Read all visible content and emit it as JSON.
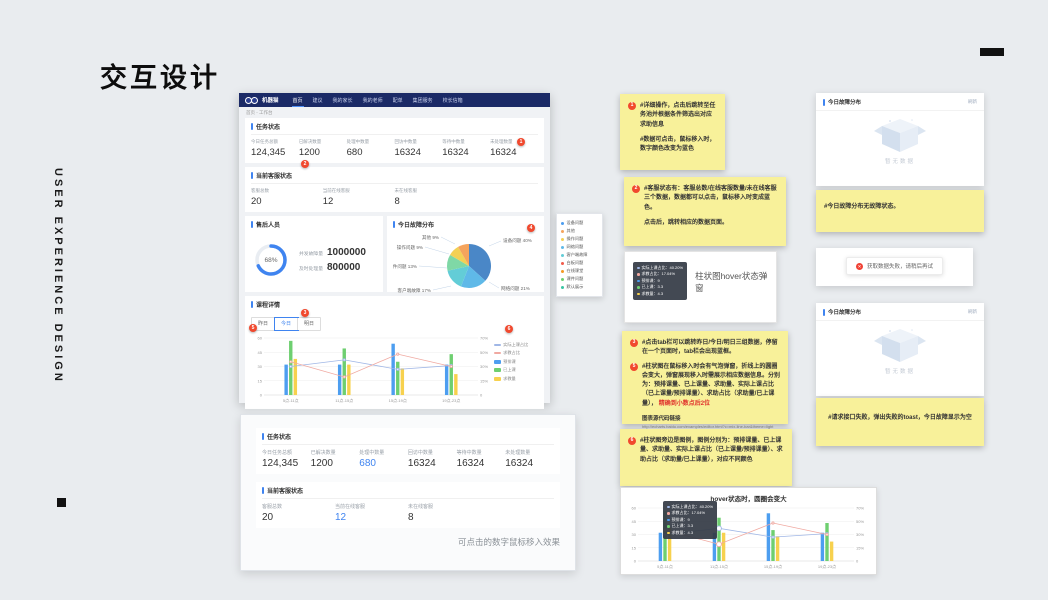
{
  "page": {
    "title": "交互设计",
    "vertical_text": "USER EXPERIENCE DESIGN",
    "caption_clickable": "可点击的数字鼠标移入效果"
  },
  "colors": {
    "accent": "#3f84f0",
    "navbar": "#1b2a66",
    "sticky_yellow": "#f8f19a",
    "badge_red": "#f1492e",
    "bar_blue": "#4d9ef0",
    "bar_green": "#6ecf70",
    "bar_yellow": "#f7d14e",
    "line_blue": "#a0b7e6",
    "line_red": "#f0a9a1"
  },
  "dashboard": {
    "navbar": {
      "logo": "机器猫",
      "items": [
        "首页",
        "建议",
        "我的家长",
        "我的老师",
        "配单",
        "集团服务",
        "校长信箱"
      ],
      "active_index": 0
    },
    "breadcrumb": "首页 - 工作台",
    "task_status": {
      "title": "任务状态",
      "stats": [
        {
          "label": "今日任务总额",
          "value": "124,345"
        },
        {
          "label": "已解决数量",
          "value": "1200"
        },
        {
          "label": "处理中数量",
          "value": "680"
        },
        {
          "label": "回访中数量",
          "value": "16324"
        },
        {
          "label": "等待中数量",
          "value": "16324"
        },
        {
          "label": "未处理数量",
          "value": "16324"
        }
      ]
    },
    "service_status": {
      "title": "当前客服状态",
      "stats": [
        {
          "label": "客服总数",
          "value": "20"
        },
        {
          "label": "当前在线客服",
          "value": "12"
        },
        {
          "label": "未在线客服",
          "value": "8"
        }
      ]
    },
    "after_sale": {
      "title": "售后人员",
      "donut_value": 68,
      "donut_label": "68%",
      "rows": [
        {
          "label": "并发故障量",
          "value": "1000000"
        },
        {
          "label": "及时处理量",
          "value": "800000"
        }
      ]
    },
    "fault": {
      "title": "今日故障分布"
    },
    "course": {
      "title": "课程详情",
      "tabs": [
        "昨日",
        "今日",
        "明日"
      ],
      "active_tab_index": 1,
      "legend": [
        {
          "label": "实际上课占比",
          "color": "#a0b7e6",
          "marker": "line"
        },
        {
          "label": "求教占比",
          "color": "#f0a9a1",
          "marker": "line"
        },
        {
          "label": "预排课",
          "color": "#4d9ef0",
          "marker": "bar"
        },
        {
          "label": "已上课",
          "color": "#6ecf70",
          "marker": "bar"
        },
        {
          "label": "求教量",
          "color": "#f7d14e",
          "marker": "bar"
        }
      ]
    }
  },
  "snippet": {
    "task_status": {
      "title": "任务状态",
      "stats": [
        {
          "label": "今日任务总额",
          "value": "124,345"
        },
        {
          "label": "已解决数量",
          "value": "1200"
        },
        {
          "label": "处理中数量",
          "value": "680",
          "highlight": true
        },
        {
          "label": "回访中数量",
          "value": "16324"
        },
        {
          "label": "等待中数量",
          "value": "16324"
        },
        {
          "label": "未处理数量",
          "value": "16324"
        }
      ]
    },
    "service_status": {
      "title": "当前客服状态",
      "stats": [
        {
          "label": "客服总数",
          "value": "20"
        },
        {
          "label": "当前在线客服",
          "value": "12",
          "highlight": true
        },
        {
          "label": "未在线客服",
          "value": "8"
        }
      ]
    }
  },
  "float_legend": {
    "items": [
      {
        "label": "设备问题",
        "color": "#4d9ef0"
      },
      {
        "label": "其他",
        "color": "#f5a45d"
      },
      {
        "label": "操作问题",
        "color": "#f3d055"
      },
      {
        "label": "网络问题",
        "color": "#5fb9e8"
      },
      {
        "label": "客户端故障",
        "color": "#63cdd7"
      },
      {
        "label": "白板问题",
        "color": "#f25c4c"
      },
      {
        "label": "在线课堂",
        "color": "#f59a23"
      },
      {
        "label": "课件问题",
        "color": "#6ecf70"
      },
      {
        "label": "默认展示",
        "color": "#39c5a3"
      }
    ]
  },
  "notes": {
    "note1": {
      "badge": "1",
      "lines": [
        "#详细操作，点击后跳转至任务池并根据条件筛选出对应求助信息",
        "#数据可点击，鼠标移入时，数字颜色改变为蓝色"
      ]
    },
    "note2": {
      "badge": "2",
      "lines": [
        "#客服状态有：客服总数/在线客服数量/未在线客服三个数据，数据都可以点击，鼠标移入时变成蓝色。",
        "点击后，跳转相应的数据页面。"
      ]
    },
    "note3": {
      "badge_a": "3",
      "text_a": "#点击tab栏可以跳转昨日/今日/明日三组数据，停留在一个页面时，tab栏会出现蓝框。",
      "badge_b": "5",
      "text_b": "#柱状图在鼠标移入时会有气泡弹窗，折线上的圆圈会变大，弹窗展现移入时需展示相应数据信息。分别为：预排课量、已上课量、求助量、实际上课占比（已上课量/预排课量）、求助占比（求助量/已上课量），",
      "text_red": "精确到小数点后2位",
      "link_label": "图表源代码链接",
      "link_url": "http://echarts.baidu.com/examples/editor.html?c=mix-line-bar&theme=light"
    },
    "note4": {
      "badge": "6",
      "text": "#柱状图旁边是图例，图例分别为：预排课量、已上课量、求助量、实际上课占比（已上课量/预排课量）、求助占比（求助量/已上课量），对应不同颜色"
    },
    "note_empty": {
      "text": "#今日故障分布无故障状态。"
    },
    "note_fail": {
      "text": "#请求接口失败，弹出失败的toast，今日故障显示为空"
    }
  },
  "cards": {
    "empty1": {
      "title": "今日故障分布",
      "action": "刷新",
      "empty_text": "暂无数据"
    },
    "empty2": {
      "title": "今日故障分布",
      "action": "刷新",
      "empty_text": "暂无数据"
    },
    "toast": {
      "message": "获取数据失败，请稍后再试"
    },
    "hover_popup": {
      "label": "柱状图hover状态弹窗"
    },
    "hover_chart": {
      "title": "hover状态时，圆圈会变大"
    }
  },
  "tooltip": {
    "rows": [
      {
        "label": "实际上课占比",
        "value": "40.20%",
        "color": "#a0b7e6"
      },
      {
        "label": "求教占比",
        "value": "17.04%",
        "color": "#f0a9a1"
      },
      {
        "label": "预排课",
        "value": "9",
        "color": "#4d9ef0"
      },
      {
        "label": "已上课",
        "value": "3.3",
        "color": "#6ecf70"
      },
      {
        "label": "求教量",
        "value": "4.3",
        "color": "#f7d14e"
      }
    ]
  },
  "chart_data": [
    {
      "id": "fault_pie",
      "type": "pie",
      "title": "今日故障分布",
      "slices": [
        {
          "label": "设备问题",
          "pct": 40,
          "color": "#4a87c7"
        },
        {
          "label": "网络问题",
          "pct": 21,
          "color": "#5fb9e8"
        },
        {
          "label": "客户端故障",
          "pct": 17,
          "color": "#63cdd7"
        },
        {
          "label": "课件问题",
          "pct": 13,
          "color": "#7fd8a6"
        },
        {
          "label": "操作问题",
          "pct": 9,
          "color": "#f3d055"
        },
        {
          "label": "其他",
          "pct": 9,
          "color": "#f5a45d"
        }
      ]
    },
    {
      "id": "course_chart",
      "type": "bar",
      "title": "课程详情",
      "categories": [
        "5点-11点",
        "11点-15点",
        "15点-19点",
        "19点-23点"
      ],
      "bar_series": [
        {
          "name": "预排课",
          "color": "#4d9ef0",
          "values": [
            32,
            32,
            54,
            32
          ]
        },
        {
          "name": "已上课",
          "color": "#6ecf70",
          "values": [
            57,
            49,
            35,
            43
          ]
        },
        {
          "name": "求教量",
          "color": "#f7d14e",
          "values": [
            38,
            32,
            28,
            22
          ]
        }
      ],
      "line_series": [
        {
          "name": "实际上课占比",
          "color": "#a0b7e6",
          "values": [
            30,
            37,
            27,
            31
          ]
        },
        {
          "name": "求教占比",
          "color": "#f0a9a1",
          "values": [
            35,
            19,
            43,
            30
          ]
        }
      ],
      "y_left_ticks": [
        0,
        15,
        30,
        45,
        60
      ],
      "y_right_ticks": [
        "0",
        "15%",
        "30%",
        "50%",
        "70%"
      ],
      "ylim": [
        0,
        60
      ],
      "xlabel": "",
      "ylabel": ""
    },
    {
      "id": "hover_chart",
      "type": "bar",
      "title": "hover状态时，圆圈会变大",
      "same_as": "course_chart",
      "emphasized_group": 1
    }
  ]
}
